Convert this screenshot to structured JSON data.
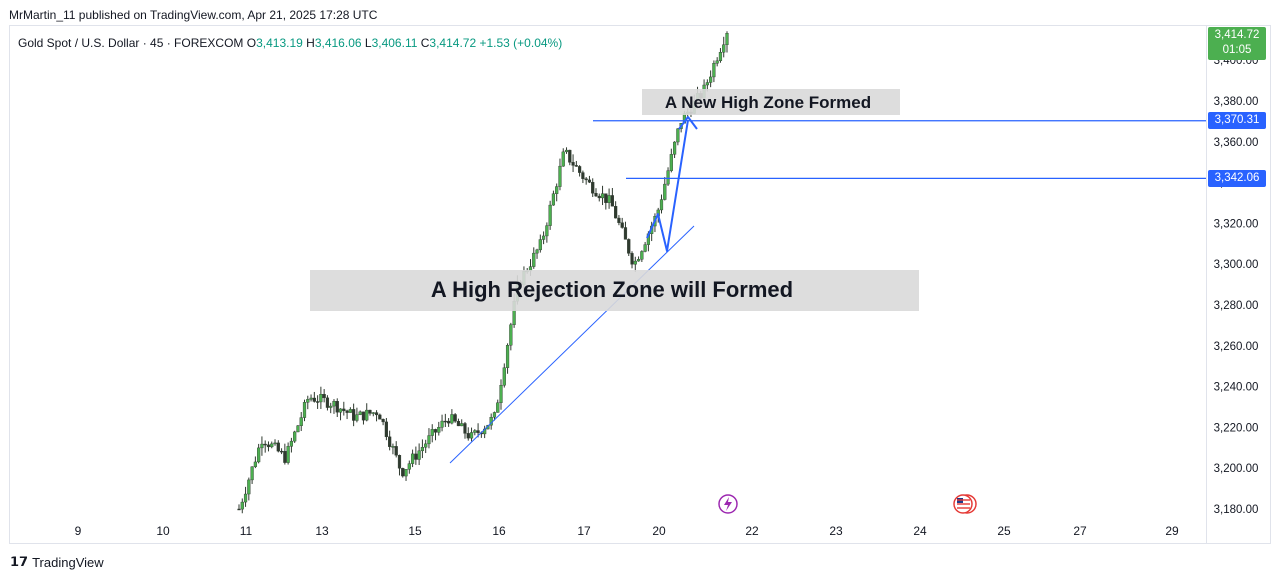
{
  "header": {
    "publisher_line": "MrMartin_11 published on TradingView.com, Apr 21, 2025 17:28 UTC"
  },
  "legend": {
    "symbol": "Gold Spot / U.S. Dollar · 45 · FOREXCOM",
    "open_label": "O",
    "open": "3,413.19",
    "high_label": "H",
    "high": "3,416.06",
    "low_label": "L",
    "low": "3,406.11",
    "close_label": "C",
    "close": "3,414.72",
    "change": "+1.53 (+0.04%)"
  },
  "last_price_tag": {
    "price": "3,414.72",
    "countdown": "01:05"
  },
  "price_levels": [
    {
      "label": "3,370.31",
      "value": 3370.31
    },
    {
      "label": "3,342.06",
      "value": 3342.06
    }
  ],
  "annotations": {
    "new_high": "A New High Zone Formed",
    "rejection": "A High Rejection Zone will Formed"
  },
  "footer": {
    "brand": "TradingView"
  },
  "colors": {
    "up": "#089981",
    "candle_up_fill": "#4caf50",
    "candle_down": "#2f3a2f",
    "line": "#2962ff",
    "zone": "#d9d9d9"
  },
  "chart_data": {
    "type": "candlestick",
    "symbol": "Gold Spot / U.S. Dollar",
    "interval": "45",
    "exchange": "FOREXCOM",
    "ylim": [
      3170,
      3425
    ],
    "y_ticks": [
      "3,180.00",
      "3,200.00",
      "3,220.00",
      "3,240.00",
      "3,260.00",
      "3,280.00",
      "3,300.00",
      "3,320.00",
      "3,340.00",
      "3,360.00",
      "3,380.00",
      "3,400.00"
    ],
    "x_ticks": [
      "9",
      "10",
      "11",
      "13",
      "15",
      "16",
      "17",
      "20",
      "22",
      "23",
      "24",
      "25",
      "27",
      "29"
    ],
    "path": [
      {
        "d": "11",
        "p": 3180
      },
      {
        "d": "11",
        "p": 3215
      },
      {
        "d": "11",
        "p": 3205
      },
      {
        "d": "13",
        "p": 3235
      },
      {
        "d": "13",
        "p": 3232
      },
      {
        "d": "13",
        "p": 3225
      },
      {
        "d": "13",
        "p": 3228
      },
      {
        "d": "15",
        "p": 3198
      },
      {
        "d": "15",
        "p": 3212
      },
      {
        "d": "15",
        "p": 3225
      },
      {
        "d": "15",
        "p": 3215
      },
      {
        "d": "16",
        "p": 3225
      },
      {
        "d": "16",
        "p": 3290
      },
      {
        "d": "16",
        "p": 3310
      },
      {
        "d": "17",
        "p": 3355
      },
      {
        "d": "17",
        "p": 3340
      },
      {
        "d": "17",
        "p": 3330
      },
      {
        "d": "17",
        "p": 3300
      },
      {
        "d": "20",
        "p": 3325
      },
      {
        "d": "20",
        "p": 3370
      },
      {
        "d": "20",
        "p": 3385
      },
      {
        "d": "21",
        "p": 3414.72
      }
    ],
    "last": {
      "open": 3413.19,
      "high": 3416.06,
      "low": 3406.11,
      "close": 3414.72,
      "change": "+1.53 (+0.04%)"
    }
  }
}
